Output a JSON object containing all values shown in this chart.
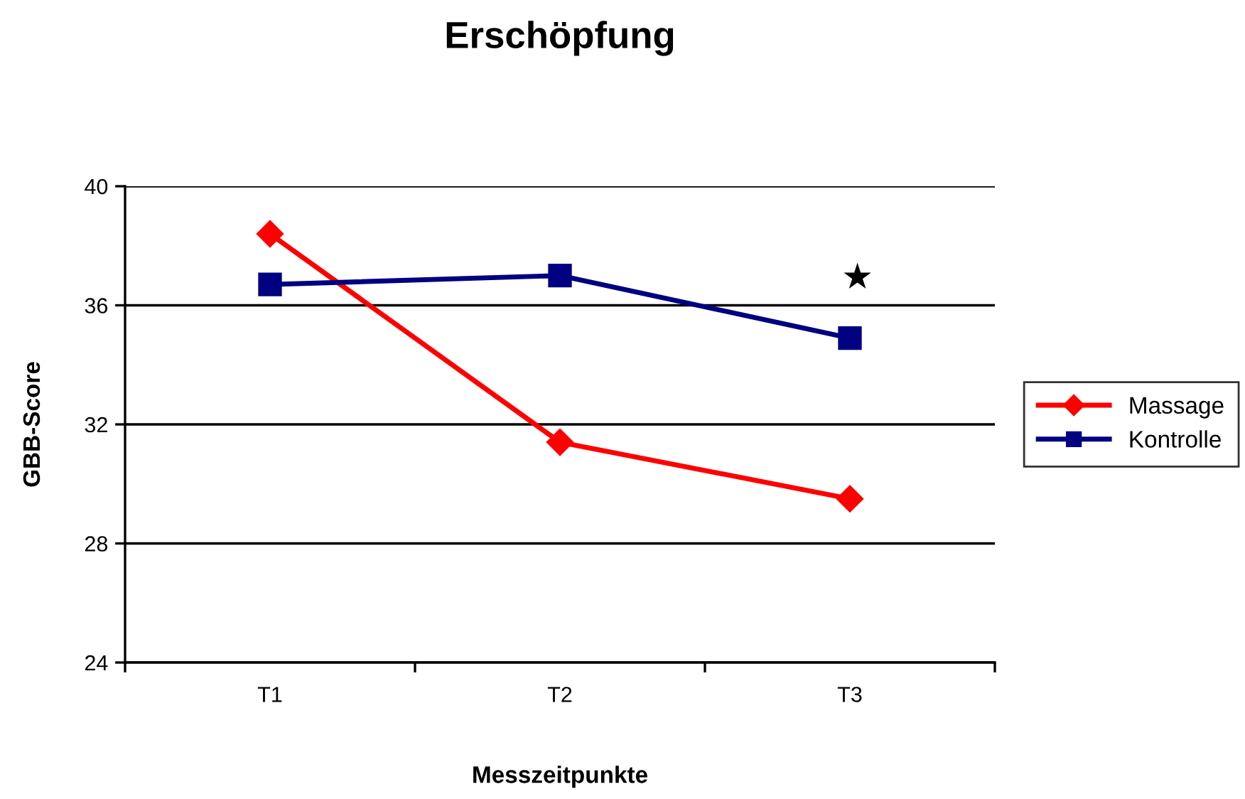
{
  "chart_data": {
    "type": "line",
    "title": "Erschöpfung",
    "xlabel": "Messzeitpunkte",
    "ylabel": "GBB-Score",
    "categories": [
      "T1",
      "T2",
      "T3"
    ],
    "series": [
      {
        "name": "Massage",
        "color": "#ff0000",
        "marker": "diamond",
        "values": [
          38.4,
          31.4,
          29.5
        ]
      },
      {
        "name": "Kontrolle",
        "color": "#000080",
        "marker": "square",
        "values": [
          36.7,
          37.0,
          34.9
        ]
      }
    ],
    "ylim": [
      24,
      40
    ],
    "yticks": [
      24,
      28,
      32,
      36,
      40
    ],
    "grid": "y",
    "legend": "right",
    "line_style": "solid",
    "annotations": [
      "★"
    ]
  }
}
